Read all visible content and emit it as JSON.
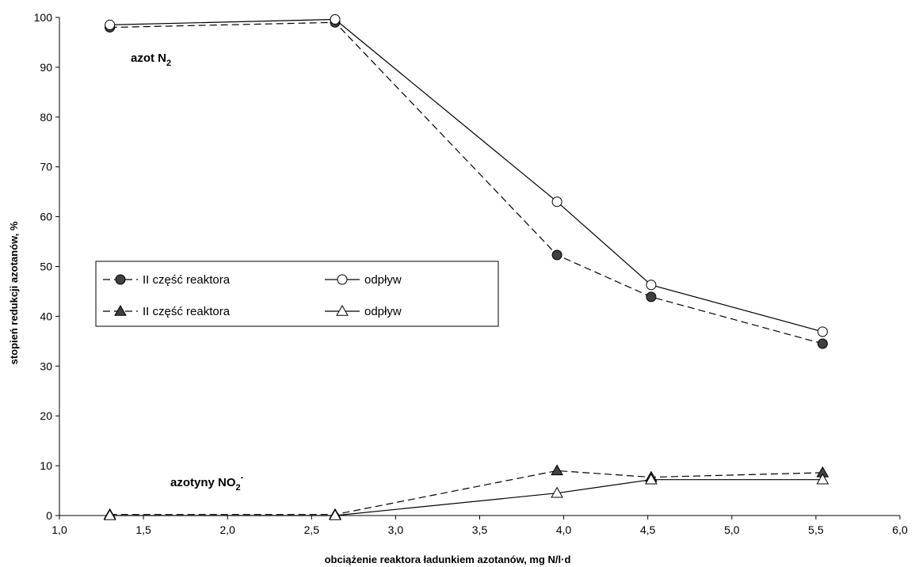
{
  "chart_data": {
    "type": "line",
    "xlabel": "obciążenie reaktora ładunkiem azotanów, mg N/l·d",
    "ylabel": "stopień redukcji azotanów, %",
    "xlim": [
      1.0,
      6.0
    ],
    "ylim": [
      0,
      100
    ],
    "x_ticks": [
      "1,0",
      "1,5",
      "2,0",
      "2,5",
      "3,0",
      "3,5",
      "4,0",
      "4,5",
      "5,0",
      "5,5",
      "6,0"
    ],
    "y_ticks": [
      "0",
      "10",
      "20",
      "30",
      "40",
      "50",
      "60",
      "70",
      "80",
      "90",
      "100"
    ],
    "grid": false,
    "legend_position": "center-left",
    "annotations": [
      {
        "text": "azot N",
        "sub": "2",
        "sup": ""
      },
      {
        "text": "azotyny NO",
        "sub": "2",
        "sup": "-"
      }
    ],
    "series": [
      {
        "name": "II część reaktora",
        "marker": "circle-filled",
        "line": "dashed",
        "points": [
          [
            1.3,
            98.0
          ],
          [
            2.64,
            99.0
          ],
          [
            3.96,
            52.3
          ],
          [
            4.52,
            43.9
          ],
          [
            5.54,
            34.5
          ]
        ]
      },
      {
        "name": "odpływ",
        "marker": "circle-open",
        "line": "solid",
        "points": [
          [
            1.3,
            98.5
          ],
          [
            2.64,
            99.6
          ],
          [
            3.96,
            63.0
          ],
          [
            4.52,
            46.3
          ],
          [
            5.54,
            36.9
          ]
        ]
      },
      {
        "name": "II część reaktora",
        "marker": "triangle-filled",
        "line": "dashed",
        "points": [
          [
            1.3,
            0.2
          ],
          [
            2.64,
            0.2
          ],
          [
            3.96,
            9.0
          ],
          [
            4.52,
            7.7
          ],
          [
            5.54,
            8.6
          ]
        ]
      },
      {
        "name": "odpływ",
        "marker": "triangle-open",
        "line": "solid",
        "points": [
          [
            1.3,
            0.0
          ],
          [
            2.64,
            0.0
          ],
          [
            3.96,
            4.5
          ],
          [
            4.52,
            7.2
          ],
          [
            5.54,
            7.2
          ]
        ]
      }
    ]
  }
}
